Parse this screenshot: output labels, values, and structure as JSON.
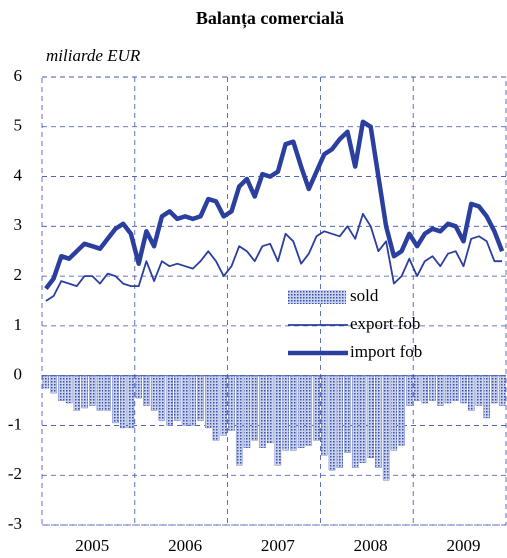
{
  "chart_data": {
    "type": "bar_line",
    "title": "Balanța comercială",
    "y_label": "miliarde EUR",
    "categories": [
      null,
      null,
      null,
      null,
      null,
      null,
      "2005",
      null,
      null,
      null,
      null,
      null,
      null,
      null,
      null,
      null,
      null,
      null,
      "2006",
      null,
      null,
      null,
      null,
      null,
      null,
      null,
      null,
      null,
      null,
      null,
      "2007",
      null,
      null,
      null,
      null,
      null,
      null,
      null,
      null,
      null,
      null,
      null,
      "2008",
      null,
      null,
      null,
      null,
      null,
      null,
      null,
      null,
      null,
      null,
      null,
      "2009",
      null,
      null,
      null,
      null,
      null
    ],
    "series": [
      {
        "name": "sold",
        "kind": "bar",
        "color": "#3b4fa8",
        "values": [
          -0.25,
          -0.35,
          -0.5,
          -0.55,
          -0.7,
          -0.65,
          -0.6,
          -0.7,
          -0.7,
          -0.95,
          -1.05,
          -1.05,
          -0.45,
          -0.6,
          -0.7,
          -0.9,
          -1.0,
          -0.9,
          -1.0,
          -1.0,
          -0.9,
          -1.05,
          -1.3,
          -1.2,
          -1.1,
          -1.8,
          -1.45,
          -1.3,
          -1.45,
          -1.35,
          -1.8,
          -1.5,
          -1.5,
          -1.45,
          -1.4,
          -1.3,
          -1.6,
          -1.9,
          -1.85,
          -1.55,
          -1.85,
          -1.75,
          -1.65,
          -1.85,
          -2.1,
          -1.5,
          -1.4,
          -0.6,
          -0.5,
          -0.55,
          -0.5,
          -0.6,
          -0.55,
          -0.5,
          -0.55,
          -0.7,
          -0.6,
          -0.85,
          -0.55,
          -0.6
        ]
      },
      {
        "name": "export fob",
        "kind": "line",
        "width": 1.8,
        "color": "#2a3f9e",
        "values": [
          1.5,
          1.6,
          1.9,
          1.85,
          1.8,
          2.0,
          2.0,
          1.85,
          2.05,
          2.0,
          1.85,
          1.8,
          1.8,
          2.3,
          1.9,
          2.3,
          2.2,
          2.25,
          2.2,
          2.15,
          2.3,
          2.5,
          2.3,
          2.0,
          2.2,
          2.6,
          2.5,
          2.3,
          2.6,
          2.65,
          2.3,
          2.85,
          2.7,
          2.25,
          2.45,
          2.8,
          2.9,
          2.85,
          2.8,
          3.0,
          2.75,
          3.25,
          3.0,
          2.5,
          2.7,
          1.85,
          2.0,
          2.35,
          2.0,
          2.3,
          2.4,
          2.2,
          2.45,
          2.5,
          2.2,
          2.75,
          2.8,
          2.7,
          2.3,
          2.3
        ]
      },
      {
        "name": "import fob",
        "kind": "line",
        "width": 4.5,
        "color": "#2a3f9e",
        "values": [
          1.75,
          1.95,
          2.4,
          2.35,
          2.5,
          2.65,
          2.6,
          2.55,
          2.75,
          2.95,
          3.05,
          2.85,
          2.25,
          2.9,
          2.6,
          3.2,
          3.3,
          3.15,
          3.2,
          3.15,
          3.2,
          3.55,
          3.5,
          3.2,
          3.3,
          3.8,
          3.95,
          3.6,
          4.05,
          4.0,
          4.1,
          4.65,
          4.7,
          4.2,
          3.75,
          4.1,
          4.45,
          4.55,
          4.75,
          4.9,
          4.2,
          5.1,
          5.0,
          4.0,
          3.0,
          2.4,
          2.5,
          2.85,
          2.6,
          2.85,
          2.95,
          2.9,
          3.05,
          3.0,
          2.7,
          3.45,
          3.4,
          3.2,
          2.9,
          2.5
        ]
      }
    ],
    "ylim": [
      -3,
      6
    ],
    "yticks": [
      -3,
      -2,
      -1,
      0,
      1,
      2,
      3,
      4,
      5,
      6
    ],
    "grid": true
  }
}
